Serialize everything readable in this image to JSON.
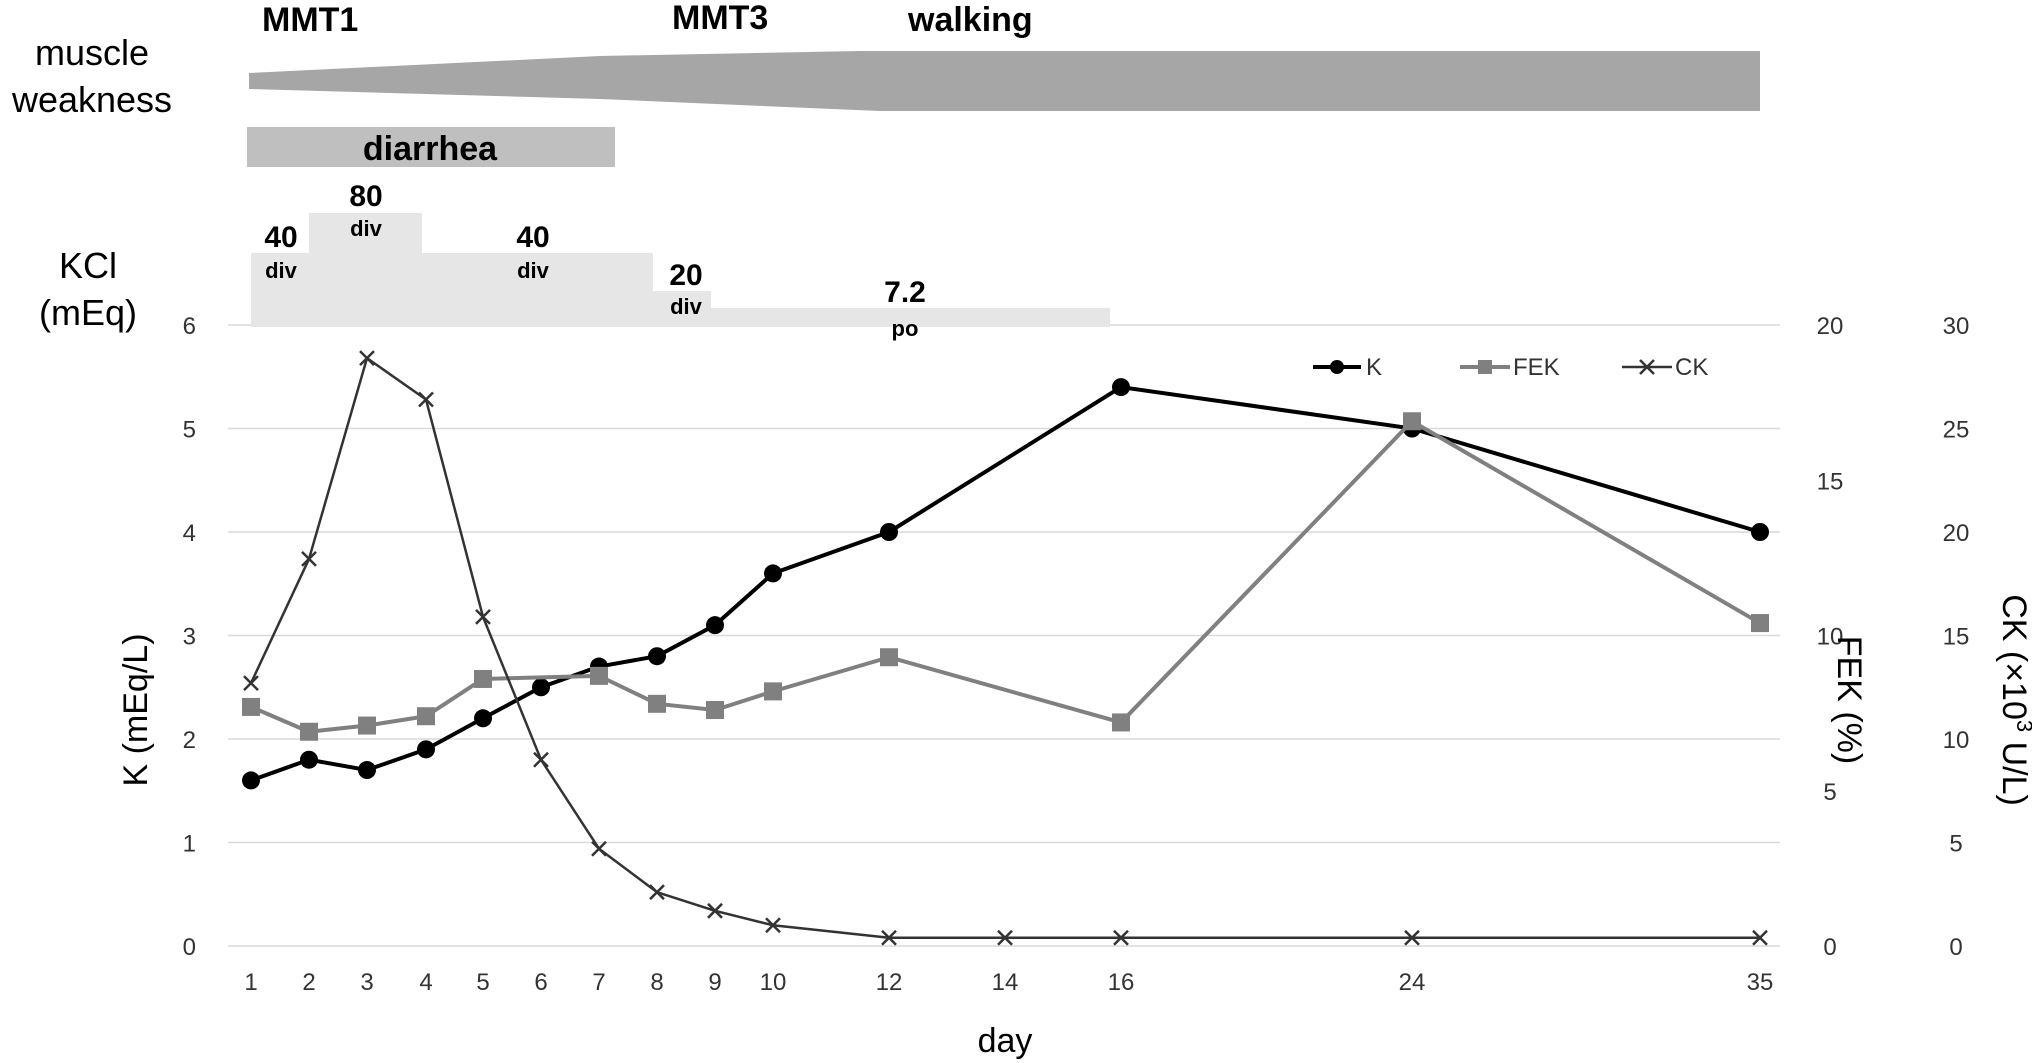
{
  "colors": {
    "k": "#000000",
    "fek": "#808080",
    "ck": "#333333",
    "grid": "#d9d9d9",
    "kcl_fill": "#e6e6e6",
    "weakness_fill": "#a6a6a6",
    "diarrhea_fill": "#bfbfbf"
  },
  "labels": {
    "muscle": "muscle",
    "weakness": "weakness",
    "diarrhea": "diarrhea",
    "kcl": "KCl",
    "kcl_unit": "(mEq)",
    "mmt1": "MMT1",
    "mmt3": "MMT3",
    "walking": "walking"
  },
  "kcl_doses": [
    {
      "from": "1",
      "to": "2",
      "value": "40",
      "route": "div"
    },
    {
      "from": "2",
      "to": "4",
      "value": "80",
      "route": "div"
    },
    {
      "from": "4",
      "to": "8",
      "value": "40",
      "route": "div"
    },
    {
      "from": "8",
      "to": "9",
      "value": "20",
      "route": "div"
    },
    {
      "from": "9",
      "to": "16",
      "value": "7.2",
      "route": "po"
    }
  ],
  "chart_data": {
    "type": "line",
    "x": [
      "1",
      "2",
      "3",
      "4",
      "5",
      "6",
      "7",
      "8",
      "9",
      "10",
      "12",
      "14",
      "16",
      "24",
      "35"
    ],
    "xlabel": "day",
    "y_left": {
      "label": "K (mEq/L)",
      "min": 0,
      "max": 6,
      "ticks": [
        "0",
        "1",
        "2",
        "3",
        "4",
        "5",
        "6"
      ]
    },
    "y_right1": {
      "label": "FEK (%)",
      "min": 0,
      "max": 20,
      "ticks": [
        "0",
        "5",
        "10",
        "15",
        "20"
      ]
    },
    "y_right2": {
      "label_main": "CK (×10",
      "label_sup": "3",
      "label_tail": " U/L)",
      "min": 0,
      "max": 30,
      "ticks": [
        "0",
        "5",
        "10",
        "15",
        "20",
        "25",
        "30"
      ]
    },
    "legend": {
      "position": "top-right",
      "k": "K",
      "fek": "FEK",
      "ck": "CK"
    },
    "series": [
      {
        "key": "k",
        "name": "K",
        "axis": "left",
        "marker": "circle",
        "points": [
          [
            "1",
            1.6
          ],
          [
            "2",
            1.8
          ],
          [
            "3",
            1.7
          ],
          [
            "4",
            1.9
          ],
          [
            "5",
            2.2
          ],
          [
            "6",
            2.5
          ],
          [
            "7",
            2.7
          ],
          [
            "8",
            2.8
          ],
          [
            "9",
            3.1
          ],
          [
            "10",
            3.6
          ],
          [
            "12",
            4.0
          ],
          [
            "16",
            5.4
          ],
          [
            "24",
            5.0
          ],
          [
            "35",
            4.0
          ]
        ]
      },
      {
        "key": "fek",
        "name": "FEK",
        "axis": "right1",
        "marker": "square",
        "points": [
          [
            "1",
            7.7
          ],
          [
            "2",
            6.9
          ],
          [
            "3",
            7.1
          ],
          [
            "4",
            7.4
          ],
          [
            "5",
            8.6
          ],
          [
            "7",
            8.7
          ],
          [
            "8",
            7.8
          ],
          [
            "9",
            7.6
          ],
          [
            "10",
            8.2
          ],
          [
            "12",
            9.3
          ],
          [
            "16",
            7.2
          ],
          [
            "24",
            16.9
          ],
          [
            "35",
            10.4
          ]
        ]
      },
      {
        "key": "ck",
        "name": "CK",
        "axis": "right2",
        "marker": "x",
        "points": [
          [
            "1",
            12.7
          ],
          [
            "2",
            18.7
          ],
          [
            "3",
            28.4
          ],
          [
            "4",
            26.4
          ],
          [
            "5",
            15.9
          ],
          [
            "6",
            9.0
          ],
          [
            "7",
            4.7
          ],
          [
            "8",
            2.6
          ],
          [
            "9",
            1.7
          ],
          [
            "10",
            1.0
          ],
          [
            "12",
            0.4
          ],
          [
            "14",
            0.4
          ],
          [
            "16",
            0.4
          ],
          [
            "24",
            0.4
          ],
          [
            "35",
            0.4
          ]
        ]
      }
    ]
  }
}
